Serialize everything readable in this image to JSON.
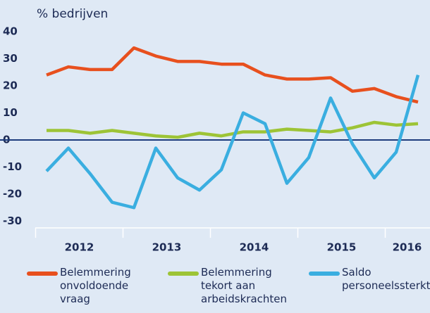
{
  "chart_data": {
    "type": "line",
    "title": "% bedrijven",
    "categories": [
      null,
      null,
      null,
      null,
      null,
      null,
      null,
      null,
      null,
      null,
      null,
      null,
      null,
      null,
      null,
      null,
      null,
      null
    ],
    "x_group_labels": [
      "2012",
      "2013",
      "2014",
      "2015",
      "2016"
    ],
    "series": [
      {
        "name": "Belemmering onvoldoende vraag",
        "color": "#e8501e",
        "values": [
          24,
          27,
          26,
          26,
          34,
          31,
          29,
          29,
          28,
          28,
          24,
          22.5,
          22.5,
          23,
          18,
          19,
          16,
          14
        ]
      },
      {
        "name": "Belemmering tekort aan arbeidskrachten",
        "color": "#9dc436",
        "values": [
          3.5,
          3.5,
          2.5,
          3.5,
          2.5,
          1.5,
          1,
          2.5,
          1.5,
          3,
          3,
          4,
          3.5,
          3,
          4.5,
          6.5,
          5.5,
          6
        ]
      },
      {
        "name": "Saldo personeelssterkte",
        "color": "#3aaee0",
        "values": [
          -11.5,
          -3,
          -12.5,
          -23,
          -25,
          -3,
          -14,
          -18.5,
          -11,
          10,
          6,
          -16,
          -6.5,
          15.5,
          -1.5,
          -14,
          -4.5,
          24
        ]
      }
    ],
    "ylim": [
      -33,
      40
    ],
    "yticks": [
      -30,
      -20,
      -10,
      0,
      10,
      20,
      30,
      40
    ]
  }
}
